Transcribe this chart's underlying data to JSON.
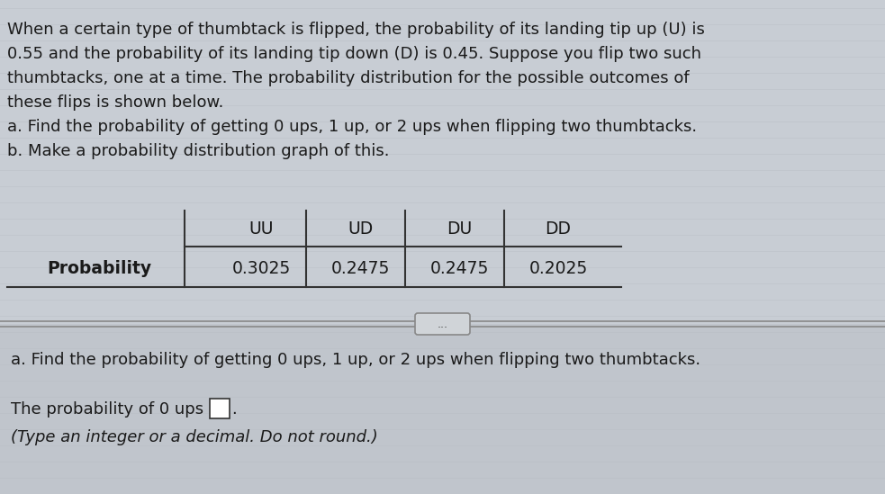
{
  "bg_color": "#c8cdd4",
  "top_bg": "#c8cdd4",
  "bottom_bg": "#c0c5cc",
  "stripe_color": "#b8bdc4",
  "paragraph_lines": [
    "When a certain type of thumbtack is flipped, the probability of its landing tip up (U) is",
    "0.55 and the probability of its landing tip down (D) is 0.45. Suppose you flip two such",
    "thumbtacks, one at a time. The probability distribution for the possible outcomes of",
    "these flips is shown below.",
    "a. Find the probability of getting 0 ups, 1 up, or 2 ups when flipping two thumbtacks.",
    "b. Make a probability distribution graph of this."
  ],
  "table_headers": [
    "UU",
    "UD",
    "DU",
    "DD"
  ],
  "table_row_label": "Probability",
  "table_values": [
    "0.3025",
    "0.2475",
    "0.2475",
    "0.2025"
  ],
  "divider_text": "...",
  "bottom_line1": "a. Find the probability of getting 0 ups, 1 up, or 2 ups when flipping two thumbtacks.",
  "bottom_line2": "The probability of 0 ups is",
  "bottom_line3": "(Type an integer or a decimal. Do not round.)",
  "font_size_para": 13.0,
  "font_size_table": 13.5,
  "font_size_bottom": 13.0,
  "text_color": "#1a1a1a",
  "line_color": "#333333",
  "divider_line_color": "#888888"
}
